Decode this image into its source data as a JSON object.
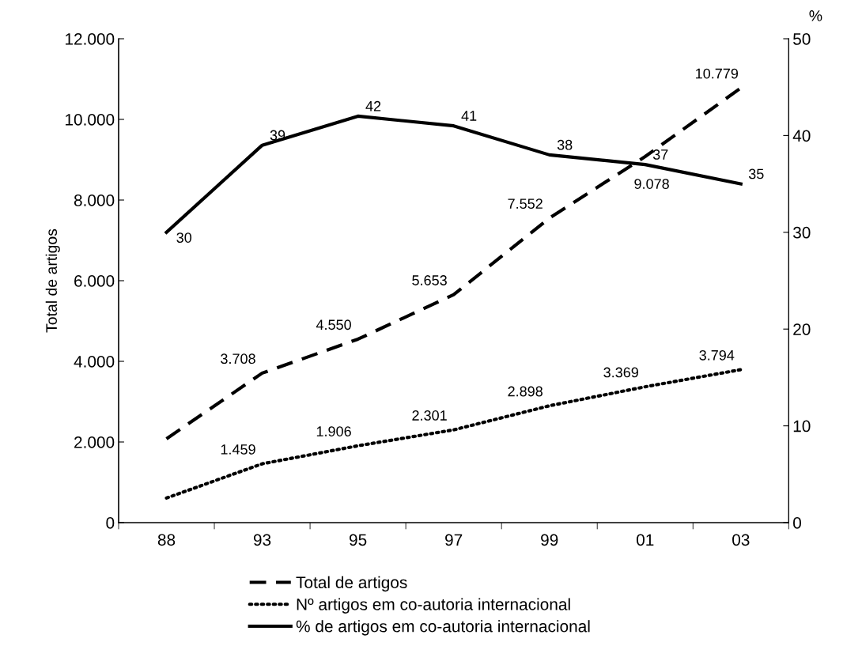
{
  "chart_data": {
    "type": "line",
    "ylabel": "Total de artigos",
    "y2label": "%",
    "categories": [
      "88",
      "93",
      "95",
      "97",
      "99",
      "01",
      "03"
    ],
    "ylim": [
      0,
      12000
    ],
    "yticks": [
      {
        "value": 0,
        "label": "0"
      },
      {
        "value": 2000,
        "label": "2.000"
      },
      {
        "value": 4000,
        "label": "4.000"
      },
      {
        "value": 6000,
        "label": "6.000"
      },
      {
        "value": 8000,
        "label": "8.000"
      },
      {
        "value": 10000,
        "label": "10.000"
      },
      {
        "value": 12000,
        "label": "12.000"
      }
    ],
    "y2lim": [
      0,
      50
    ],
    "y2ticks": [
      0,
      10,
      20,
      30,
      40,
      50
    ],
    "grid": false,
    "legend": "bottom",
    "marker": "none",
    "series": [
      {
        "name": "Total de artigos",
        "color": "#000000",
        "line_style": "dashed",
        "values": [
          2080,
          3708,
          4550,
          5653,
          7552,
          9078,
          10779
        ],
        "value_labels": [
          null,
          "3.708",
          "4.550",
          "5.653",
          "7.552",
          "9.078",
          "10.779"
        ]
      },
      {
        "name": "Nº artigos em co-autoria internacional",
        "color": "#000000",
        "line_style": "dotted",
        "values": [
          610,
          1459,
          1906,
          2301,
          2898,
          3369,
          3794
        ],
        "value_labels": [
          null,
          "1.459",
          "1.906",
          "2.301",
          "2.898",
          "3.369",
          "3.794"
        ]
      },
      {
        "name": "% de artigos em co-autoria internacional",
        "color": "#000000",
        "line_style": "solid",
        "axis": "y2",
        "values": [
          30,
          39,
          42,
          41,
          38,
          37,
          35
        ],
        "value_labels": [
          "30",
          "39",
          "42",
          "41",
          "38",
          "37",
          "35"
        ]
      }
    ]
  }
}
